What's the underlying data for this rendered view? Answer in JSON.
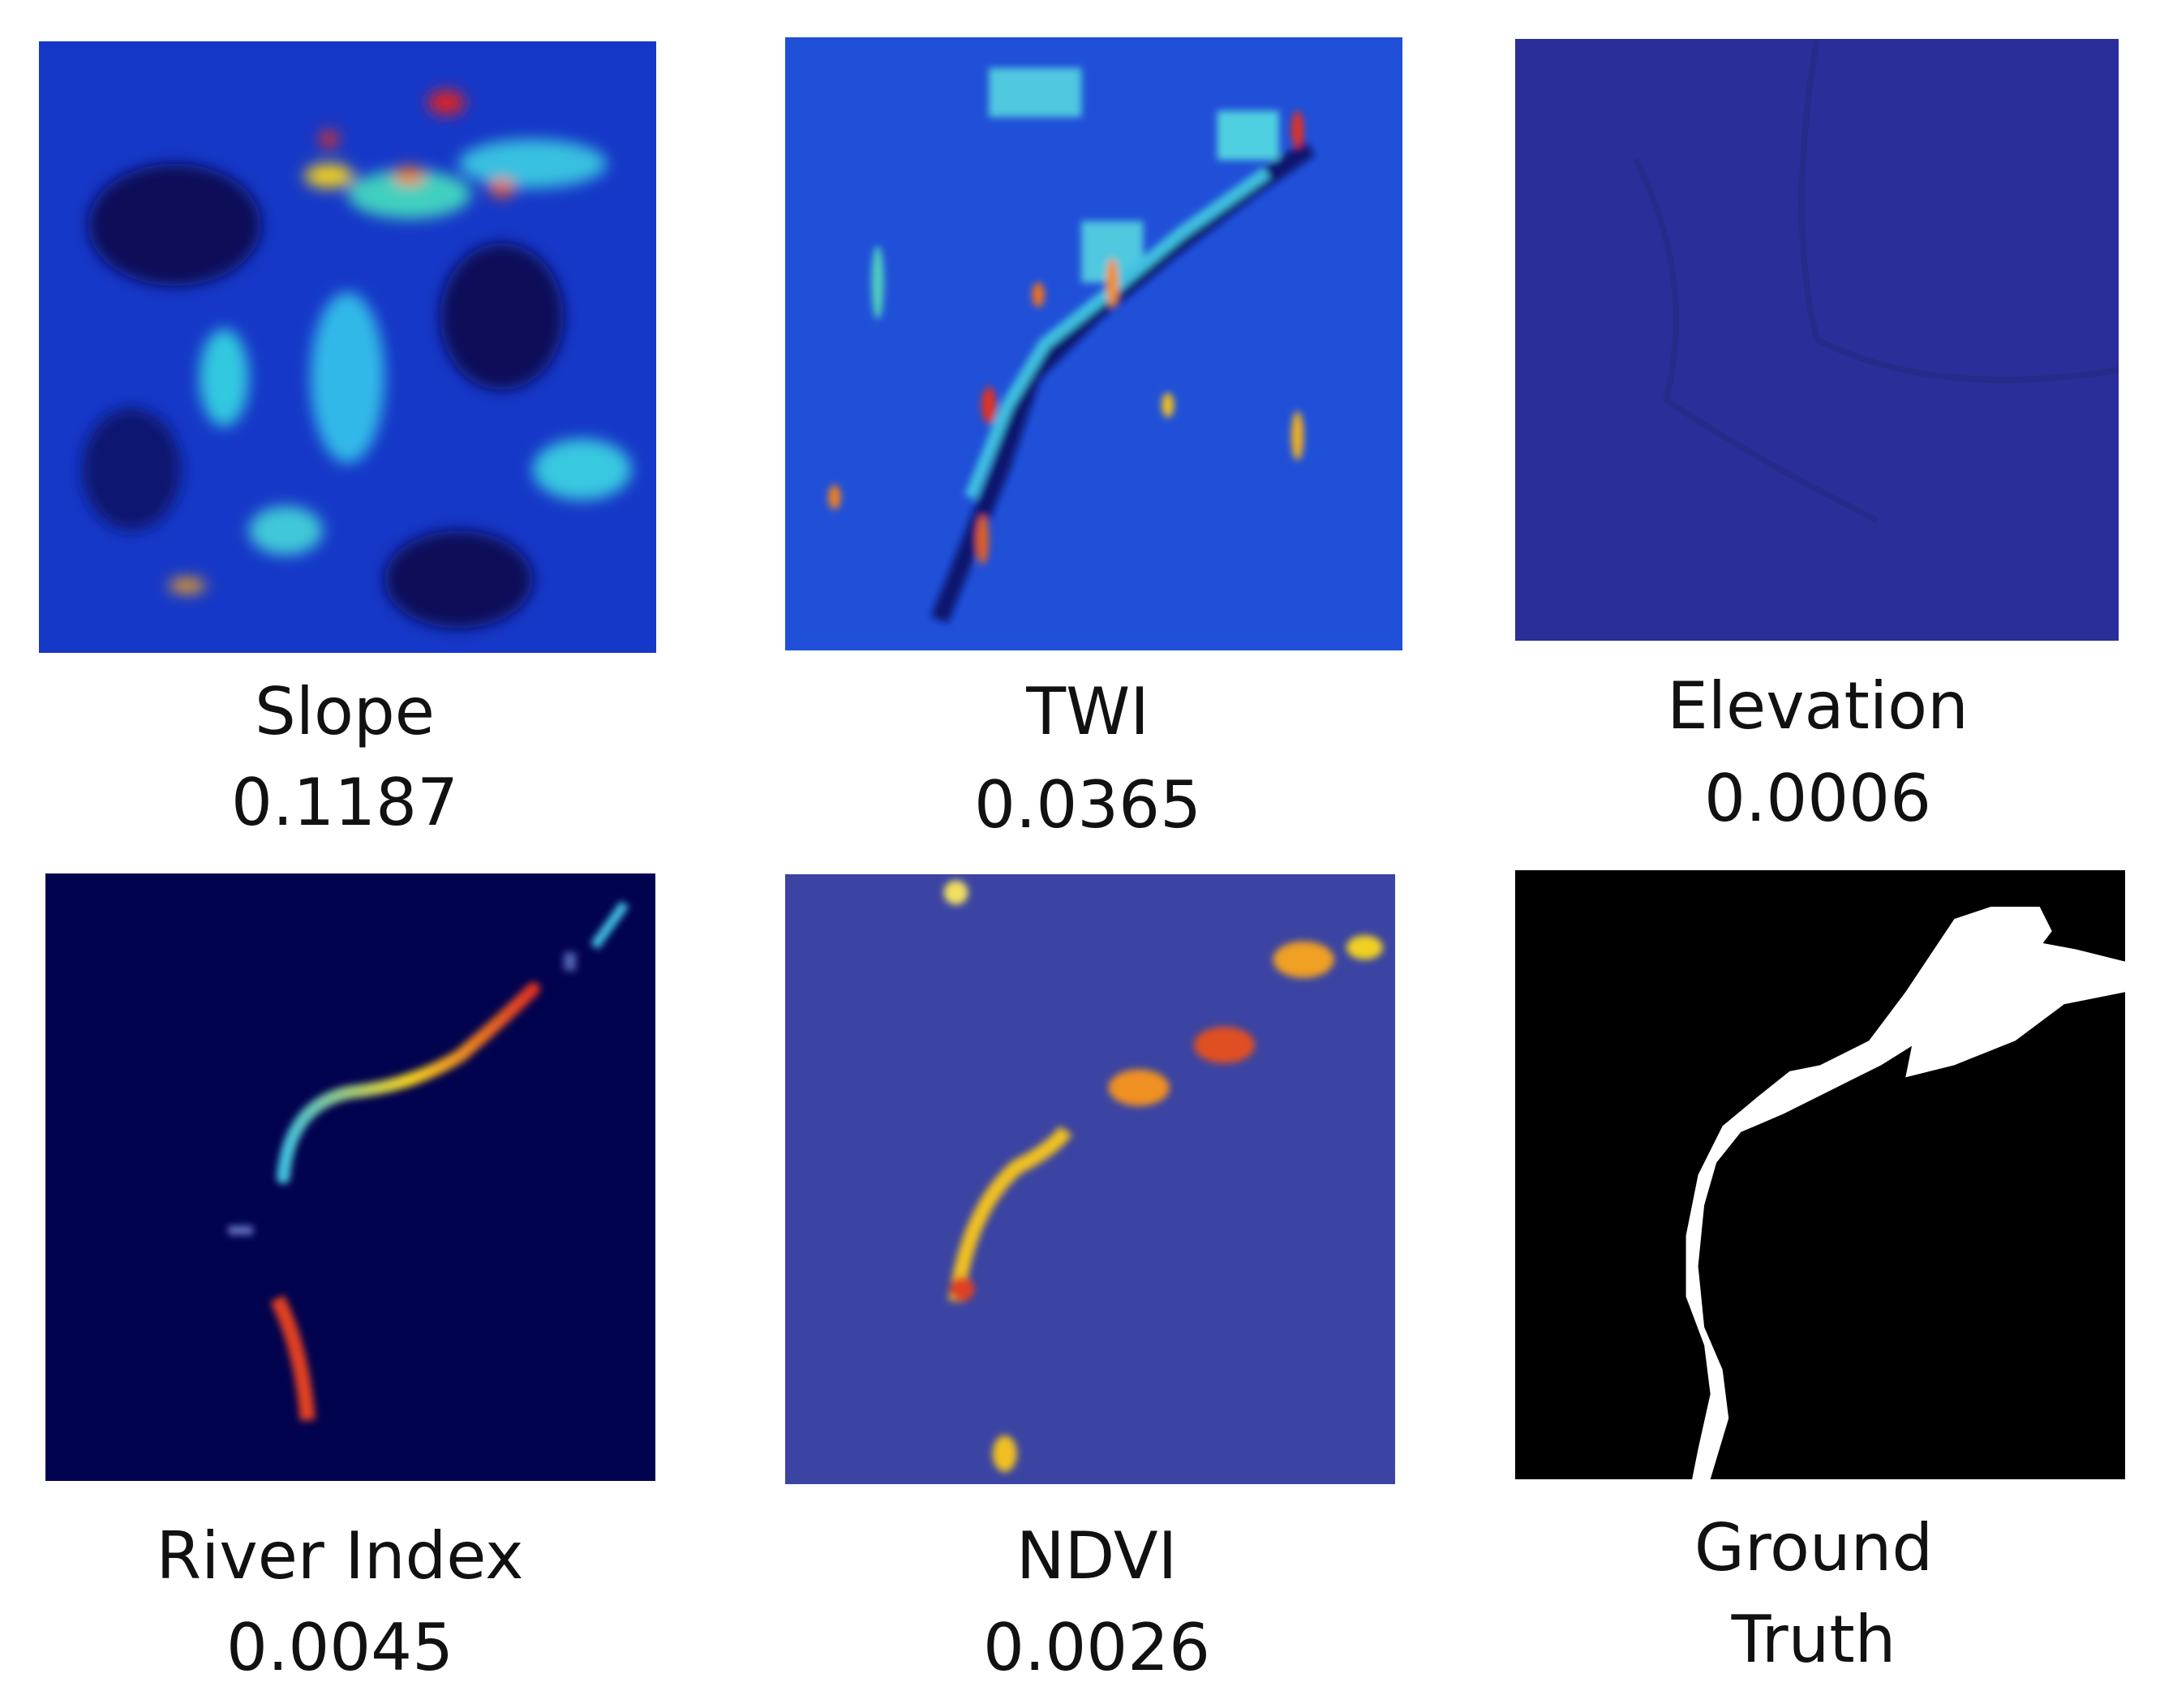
{
  "panels": [
    {
      "label": "Slope",
      "value": "0.1187"
    },
    {
      "label": "TWI",
      "value": "0.0365"
    },
    {
      "label": "Elevation",
      "value": "0.0006"
    },
    {
      "label": "River Index",
      "value": "0.0045"
    },
    {
      "label": "NDVI",
      "value": "0.0026"
    },
    {
      "label": "Ground Truth"
    }
  ]
}
